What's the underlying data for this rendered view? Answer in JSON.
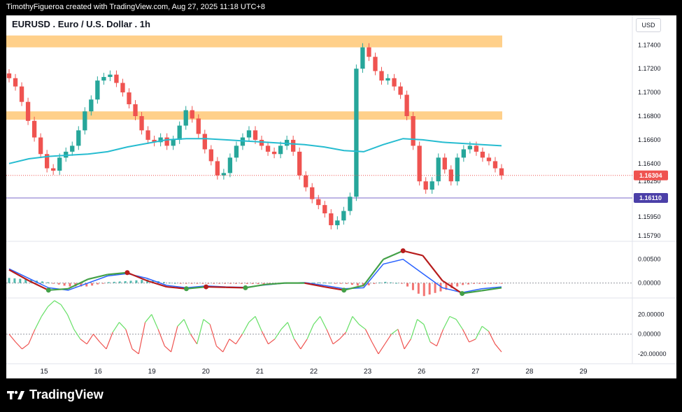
{
  "header": {
    "credit": "TimothyFigueroa created with TradingView.com, Aug 27, 2025 11:18 UTC+8"
  },
  "chart": {
    "title": "EURUSD . Euro / U.S. Dollar . 1h",
    "currency": "USD"
  },
  "footer": {
    "brand": "TradingView"
  },
  "colors": {
    "up": "#26a69a",
    "down": "#ef5350",
    "ma": "#26bcd0",
    "zone": "#ffd08a",
    "support": "#7b68c8",
    "macd": "#2962ff",
    "signal_up": "#43a047",
    "signal_down": "#b71c1c",
    "osc_up": "#66e066",
    "osc_down": "#ef5350"
  },
  "chart_data": [
    {
      "type": "candlestick",
      "title": "EURUSD . Euro / U.S. Dollar . 1h",
      "ylabel": "USD",
      "ylim": [
        1.1575,
        1.1762
      ],
      "y_ticks": [
        "1.17400",
        "1.17200",
        "1.17000",
        "1.16800",
        "1.16600",
        "1.16400",
        "1.16250",
        "1.15950",
        "1.15790"
      ],
      "x_ticks": [
        "15",
        "16",
        "19",
        "20",
        "21",
        "22",
        "23",
        "26",
        "27",
        "28",
        "29"
      ],
      "resistance_zones": [
        [
          1.1738,
          1.1748
        ],
        [
          1.1677,
          1.1684
        ]
      ],
      "support_level": 1.1611,
      "labels": {
        "last_price": "1.16304",
        "support_price": "1.16110"
      },
      "close_series": [
        1.1712,
        1.1705,
        1.1692,
        1.1676,
        1.1662,
        1.1648,
        1.1636,
        1.1634,
        1.1645,
        1.165,
        1.1655,
        1.1668,
        1.1684,
        1.1694,
        1.171,
        1.1713,
        1.1715,
        1.1708,
        1.17,
        1.169,
        1.168,
        1.1668,
        1.166,
        1.1658,
        1.1662,
        1.1655,
        1.166,
        1.1672,
        1.1685,
        1.1678,
        1.1665,
        1.1652,
        1.1642,
        1.163,
        1.1632,
        1.1645,
        1.1655,
        1.1662,
        1.1668,
        1.166,
        1.1655,
        1.165,
        1.1648,
        1.1655,
        1.166,
        1.165,
        1.163,
        1.162,
        1.161,
        1.1605,
        1.1598,
        1.1588,
        1.1592,
        1.16,
        1.1612,
        1.172,
        1.1738,
        1.173,
        1.1718,
        1.171,
        1.1712,
        1.1705,
        1.1698,
        1.168,
        1.1655,
        1.1625,
        1.1618,
        1.1625,
        1.1645,
        1.1635,
        1.1625,
        1.1645,
        1.1652,
        1.1655,
        1.165,
        1.1645,
        1.1642,
        1.1636,
        1.163
      ],
      "moving_average": [
        1.164,
        1.1644,
        1.1646,
        1.1647,
        1.1648,
        1.165,
        1.1654,
        1.1657,
        1.166,
        1.1661,
        1.1661,
        1.166,
        1.1659,
        1.1658,
        1.1657,
        1.1656,
        1.1654,
        1.1651,
        1.165,
        1.1656,
        1.1661,
        1.166,
        1.1658,
        1.1657,
        1.1656,
        1.1655
      ],
      "macd": {
        "y_ticks": [
          "0.00500",
          "0.00000"
        ],
        "macd_line": [
          0.003,
          0.001,
          -0.001,
          -0.0015,
          0.0,
          0.0015,
          0.002,
          0.001,
          -0.0005,
          -0.001,
          -0.0006,
          -0.0008,
          -0.0009,
          -0.0004,
          0.0,
          0.0001,
          -0.0005,
          -0.0012,
          -0.001,
          0.004,
          0.005,
          0.002,
          -0.001,
          -0.002,
          -0.0012,
          -0.0008
        ],
        "signal_line": [
          0.0028,
          0.0005,
          -0.0015,
          -0.0012,
          0.0008,
          0.0018,
          0.0022,
          0.0005,
          -0.0008,
          -0.0012,
          -0.0008,
          -0.0009,
          -0.001,
          -0.0003,
          0.0,
          0.0,
          -0.0008,
          -0.0015,
          -0.0005,
          0.005,
          0.0068,
          0.0058,
          0.0005,
          -0.0022,
          -0.0016,
          -0.001
        ]
      },
      "oscillator": {
        "y_ticks": [
          "20.00000",
          "0.00000",
          "-20.00000"
        ],
        "values": [
          0,
          -8,
          -15,
          -10,
          5,
          18,
          28,
          34,
          30,
          20,
          5,
          -5,
          -10,
          0,
          -8,
          -15,
          2,
          12,
          5,
          -15,
          -20,
          12,
          20,
          5,
          -12,
          -18,
          8,
          15,
          0,
          -10,
          15,
          10,
          -12,
          -18,
          -5,
          -10,
          0,
          12,
          18,
          3,
          -10,
          -5,
          5,
          12,
          -5,
          -15,
          -5,
          10,
          18,
          5,
          -10,
          -5,
          2,
          18,
          10,
          5,
          -8,
          -20,
          -10,
          0,
          5,
          -15,
          -5,
          15,
          10,
          -8,
          -12,
          5,
          18,
          15,
          5,
          -8,
          -5,
          8,
          3,
          -10,
          -18
        ]
      }
    }
  ]
}
